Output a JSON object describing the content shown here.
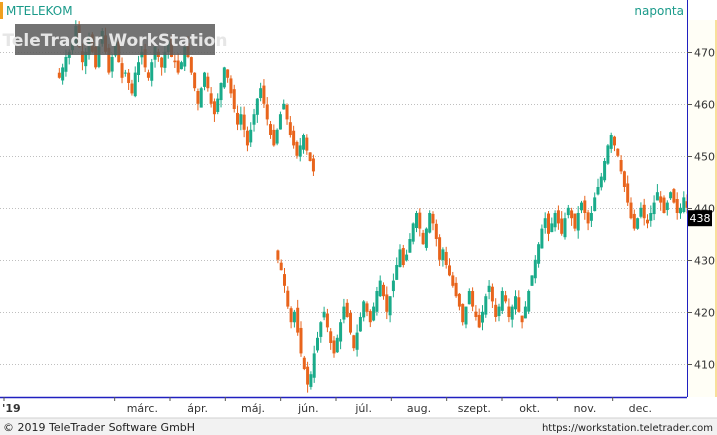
{
  "header": {
    "symbol": "MTELEKOM",
    "period": "naponta",
    "watermark": "TeleTrader WorkStation"
  },
  "footer": {
    "copyright": "© 2019 TeleTrader Software GmbH",
    "url": "https://workstation.teletrader.com"
  },
  "colors": {
    "up": "#1aab8a",
    "down": "#e8641c",
    "grid": "#bfbfbf",
    "axis_border": "#2020c0",
    "header_text": "#1a9a8a",
    "accent": "#f0a020",
    "last_price_box": "#000000"
  },
  "chart_data": {
    "type": "candlestick",
    "x_axis_labels": [
      "'19",
      "márc.",
      "ápr.",
      "máj.",
      "jún.",
      "júl.",
      "aug.",
      "szept.",
      "okt.",
      "nov.",
      "dec."
    ],
    "y_ticks": [
      410,
      420,
      430,
      440,
      450,
      460,
      470
    ],
    "y_range": [
      404,
      479
    ],
    "last_price": 438,
    "grid": "horizontal dotted",
    "segments": [
      {
        "start_month": 1,
        "closes": [
          465,
          467,
          469,
          470,
          472,
          475,
          471,
          468,
          470,
          473,
          470,
          467,
          471,
          474,
          470,
          466,
          469,
          472,
          468,
          465,
          466,
          464,
          462,
          466,
          468,
          470,
          467,
          465,
          468,
          471,
          469,
          467,
          470,
          472,
          469,
          468,
          466,
          468,
          471,
          469,
          466,
          463,
          460,
          463,
          466,
          463,
          460,
          458,
          461,
          464,
          467,
          465,
          462,
          459,
          456,
          458,
          455,
          452,
          455,
          458,
          461,
          463,
          460,
          457,
          454,
          452,
          455,
          458,
          460,
          457,
          454,
          452,
          450,
          452,
          454,
          451,
          449,
          447
        ]
      },
      {
        "start_month": 4.95,
        "closes": [
          430,
          428,
          425,
          421,
          418,
          420,
          416,
          412,
          409,
          406,
          408,
          412,
          415,
          418,
          420,
          417,
          414,
          412,
          415,
          418,
          421,
          419,
          416,
          413,
          416,
          419,
          422,
          420,
          418,
          421,
          424,
          426,
          423,
          420,
          423,
          426,
          429,
          432,
          429,
          431,
          434,
          437,
          439,
          436,
          433,
          436,
          439,
          437,
          434,
          430,
          432,
          429,
          427,
          425,
          423,
          421,
          418,
          421,
          424,
          421,
          419,
          417,
          420,
          423,
          425,
          422,
          419,
          421,
          424,
          422,
          419,
          421,
          423,
          420,
          418,
          421,
          424,
          427,
          430,
          433,
          436,
          438,
          435,
          437,
          439,
          437,
          435,
          438,
          440,
          438,
          436,
          439,
          441,
          439,
          437,
          439,
          442,
          444,
          446,
          449,
          452,
          454,
          452,
          450,
          447,
          444,
          441,
          438,
          436,
          438,
          440,
          438,
          437,
          439,
          441,
          443,
          441,
          439,
          441,
          443,
          441,
          439,
          440,
          442,
          440,
          438,
          440,
          439,
          438
        ]
      }
    ]
  }
}
